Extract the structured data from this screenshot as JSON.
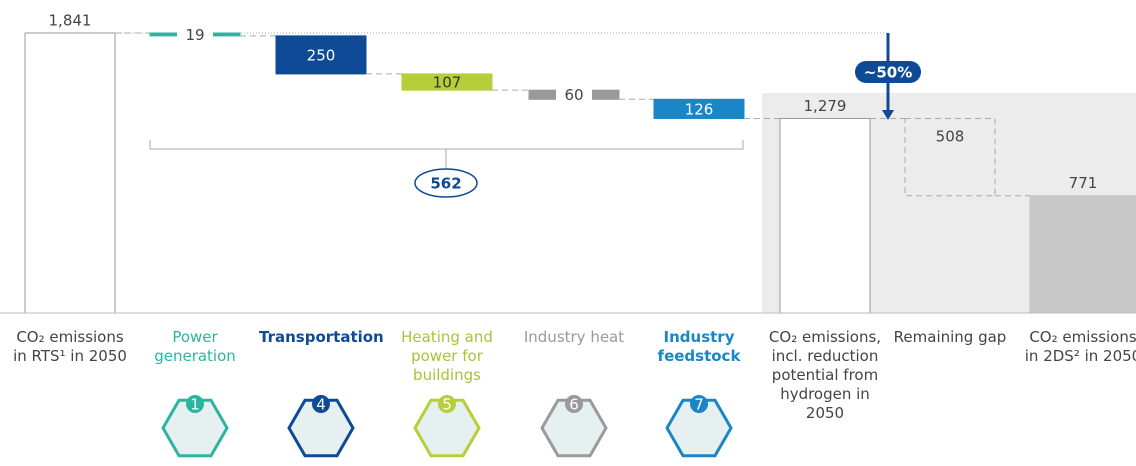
{
  "chart_data": {
    "type": "waterfall",
    "categories": [
      "CO₂ emissions in RTS¹ in 2050",
      "Power generation",
      "Transportation",
      "Heating and power for buildings",
      "Industry heat",
      "Industry feedstock",
      "CO₂ emissions, incl. reduction potential from hydrogen in 2050",
      "Remaining gap",
      "CO₂ emissions in 2DS² in 2050"
    ],
    "values": [
      1841,
      19,
      250,
      107,
      60,
      126,
      1279,
      508,
      771
    ],
    "value_labels": [
      "1,841",
      "19",
      "250",
      "107",
      "60",
      "126",
      "1,279",
      "508",
      "771"
    ],
    "colors": [
      "#ffffff",
      "#2bb5a0",
      "#0e4a96",
      "#b5cf3b",
      "#9a9a9a",
      "#1a86c8",
      "#ffffff",
      "none",
      "#c8c8c8"
    ],
    "label_colors": [
      "#444444",
      "#2bb5a0",
      "#0e4a96",
      "#a8c23a",
      "#9a9a9a",
      "#1a86c8",
      "#444444",
      "#444444",
      "#444444"
    ],
    "icon_labels": [
      "1",
      "4",
      "5",
      "6",
      "7"
    ],
    "annotations": {
      "total_reduction": "562",
      "share": "~50%"
    }
  }
}
